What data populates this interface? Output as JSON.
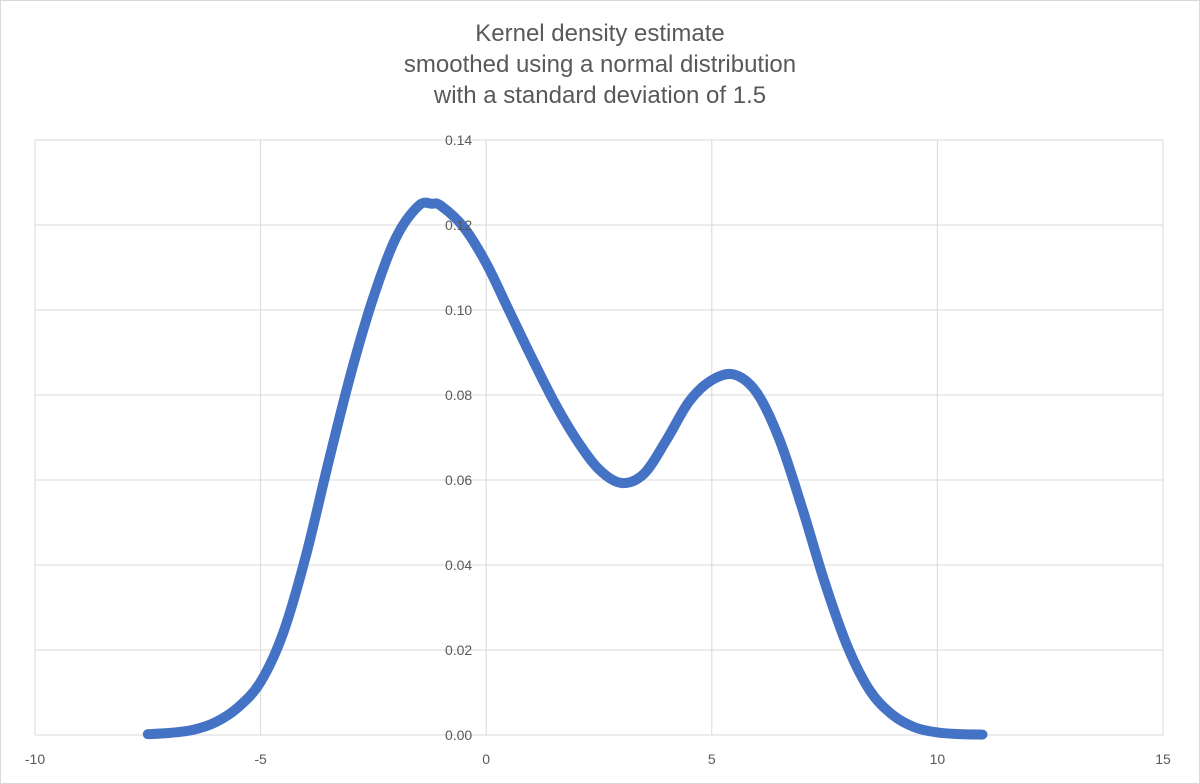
{
  "chart_data": {
    "type": "line",
    "title_lines": [
      "Kernel density estimate",
      "smoothed using a normal distribution",
      "with a standard deviation of 1.5"
    ],
    "xlabel": "",
    "ylabel": "",
    "xlim": [
      -10,
      15
    ],
    "ylim": [
      0,
      0.14
    ],
    "x_ticks": [
      -10,
      -5,
      0,
      5,
      10,
      15
    ],
    "x_tick_labels": [
      "-10",
      "-5",
      "0",
      "5",
      "10",
      "15"
    ],
    "y_ticks": [
      0,
      0.02,
      0.04,
      0.06,
      0.08,
      0.1,
      0.12,
      0.14
    ],
    "y_tick_labels": [
      "0.00",
      "0.02",
      "0.04",
      "0.06",
      "0.08",
      "0.10",
      "0.12",
      "0.14"
    ],
    "grid": true,
    "series_color": "#4472c4",
    "series": [
      {
        "x": [
          -7.5,
          -7.0,
          -6.5,
          -6.0,
          -5.5,
          -5.0,
          -4.5,
          -4.0,
          -3.5,
          -3.0,
          -2.5,
          -2.0,
          -1.5,
          -1.2,
          -1.0,
          -0.5,
          0.0,
          0.5,
          1.0,
          1.5,
          2.0,
          2.5,
          3.0,
          3.5,
          4.0,
          4.5,
          5.0,
          5.5,
          6.0,
          6.5,
          7.0,
          7.5,
          8.0,
          8.5,
          9.0,
          9.5,
          10.0,
          10.5,
          11.0
        ],
        "y": [
          0.0002,
          0.0005,
          0.0012,
          0.003,
          0.0065,
          0.0125,
          0.024,
          0.042,
          0.064,
          0.085,
          0.103,
          0.117,
          0.1245,
          0.125,
          0.1245,
          0.1195,
          0.111,
          0.1,
          0.089,
          0.0785,
          0.0695,
          0.0625,
          0.0593,
          0.0615,
          0.0695,
          0.0785,
          0.0835,
          0.0848,
          0.0805,
          0.0695,
          0.0535,
          0.036,
          0.021,
          0.0105,
          0.0048,
          0.0018,
          0.0006,
          0.0002,
          0.0001
        ]
      }
    ]
  }
}
